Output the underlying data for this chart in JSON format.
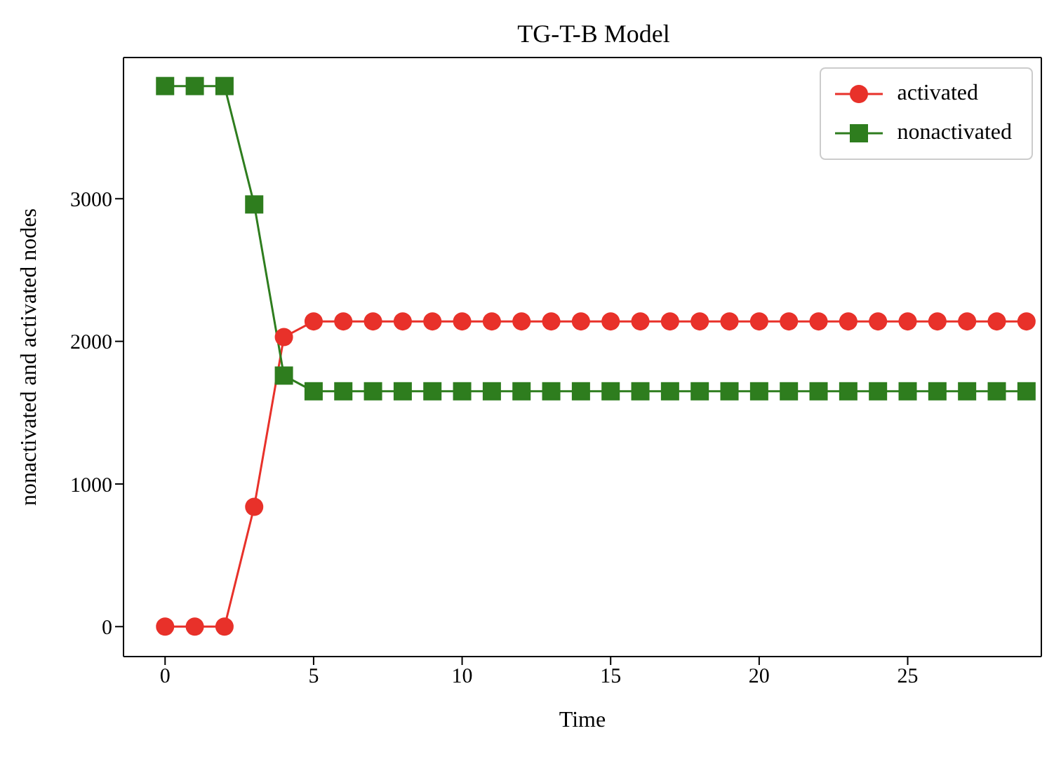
{
  "chart_data": {
    "type": "line",
    "title": "TG-T-B Model",
    "xlabel": "Time",
    "ylabel": "nonactivated and activated nodes",
    "x": [
      0,
      1,
      2,
      3,
      4,
      5,
      6,
      7,
      8,
      9,
      10,
      11,
      12,
      13,
      14,
      15,
      16,
      17,
      18,
      19,
      20,
      21,
      22,
      23,
      24,
      25,
      26,
      27,
      28,
      29
    ],
    "series": [
      {
        "name": "activated",
        "color": "#e8312a",
        "marker": "circle",
        "values": [
          0,
          0,
          0,
          840,
          2030,
          2140,
          2140,
          2140,
          2140,
          2140,
          2140,
          2140,
          2140,
          2140,
          2140,
          2140,
          2140,
          2140,
          2140,
          2140,
          2140,
          2140,
          2140,
          2140,
          2140,
          2140,
          2140,
          2140,
          2140,
          2140
        ]
      },
      {
        "name": "nonactivated",
        "color": "#2e7d1e",
        "marker": "square",
        "values": [
          3790,
          3790,
          3790,
          2960,
          1760,
          1650,
          1650,
          1650,
          1650,
          1650,
          1650,
          1650,
          1650,
          1650,
          1650,
          1650,
          1650,
          1650,
          1650,
          1650,
          1650,
          1650,
          1650,
          1650,
          1650,
          1650,
          1650,
          1650,
          1650,
          1650
        ]
      }
    ],
    "xlim": [
      -1.4,
      29.5
    ],
    "xticks": [
      0,
      5,
      10,
      15,
      20,
      25
    ],
    "ylim": [
      -210,
      3990
    ],
    "yticks": [
      0,
      1000,
      2000,
      3000
    ],
    "legend": "top right",
    "grid": false
  }
}
